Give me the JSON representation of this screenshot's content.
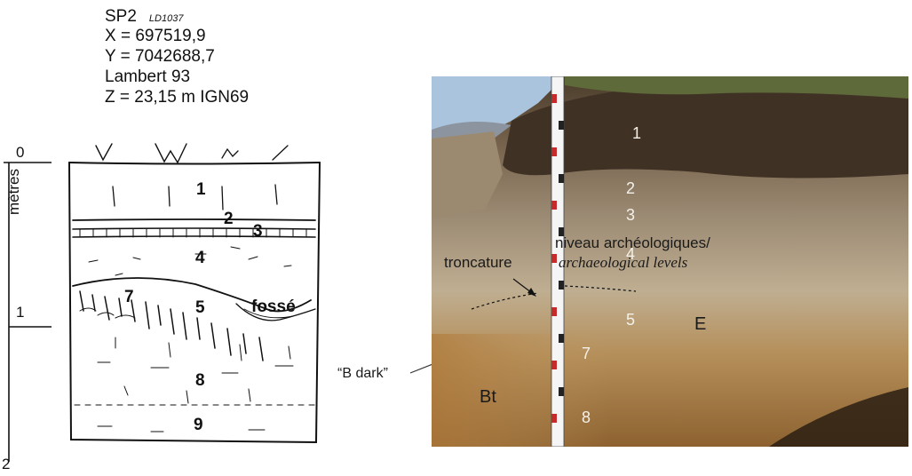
{
  "header": {
    "site": "SP2",
    "site_code": "LD1037",
    "x": "X = 697519,9",
    "y": "Y = 7042688,7",
    "projection": "Lambert 93",
    "z": "Z = 23,15 m IGN69"
  },
  "scale": {
    "unit_label": "mètres",
    "ticks": [
      "0",
      "1",
      "2"
    ]
  },
  "sketch": {
    "layers": [
      "1",
      "2",
      "3",
      "4",
      "5",
      "7",
      "8",
      "9"
    ],
    "feature_label": "fossé"
  },
  "photo": {
    "layers": [
      "1",
      "2",
      "3",
      "4",
      "5",
      "7",
      "8"
    ],
    "horizon_E": "E",
    "horizon_Bt": "Bt",
    "archaeo_label_fr": "niveau archéologiques/",
    "archaeo_label_en": "archaeological levels",
    "truncation_label": "troncature",
    "b_dark_label": "“B dark”"
  },
  "colors": {
    "topsoil": "#4a3b2a",
    "sky": "#aac4de",
    "e_horizon": "#bfae91",
    "bt_horizon": "#b07a3a"
  }
}
